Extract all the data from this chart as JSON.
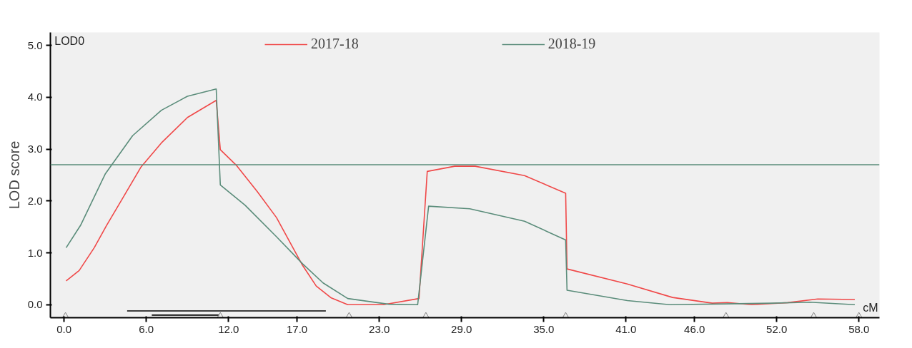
{
  "chart_data": {
    "type": "line",
    "ylabel": "LOD score",
    "annotations": [
      "LOD0",
      "cM"
    ],
    "xlim": [
      -1.0,
      59.5
    ],
    "ylim": [
      -0.25,
      5.25
    ],
    "xticks": [
      {
        "value": 0,
        "label": "0.0"
      },
      {
        "value": 6,
        "label": "6.0"
      },
      {
        "value": 12,
        "label": "12.0"
      },
      {
        "value": 17,
        "label": "17.0"
      },
      {
        "value": 23,
        "label": "23.0"
      },
      {
        "value": 29,
        "label": "29.0"
      },
      {
        "value": 35,
        "label": "35.0"
      },
      {
        "value": 41,
        "label": "41.0"
      },
      {
        "value": 46,
        "label": "46.0"
      },
      {
        "value": 52,
        "label": "52.0"
      },
      {
        "value": 58,
        "label": "58.0"
      }
    ],
    "yticks": [
      {
        "value": 0,
        "label": "0.0"
      },
      {
        "value": 1,
        "label": "1.0"
      },
      {
        "value": 2,
        "label": "2.0"
      },
      {
        "value": 3,
        "label": "3.0"
      },
      {
        "value": 4,
        "label": "4.0"
      },
      {
        "value": 5,
        "label": "5.0"
      }
    ],
    "grid": false,
    "legend": "top",
    "line_style": "solid",
    "marker": "none",
    "ref_lines": [
      {
        "axis": "y",
        "value": 2.7,
        "label": null,
        "color": "#5a8c7a"
      }
    ],
    "series": [
      {
        "name": "2017-18",
        "color": "#f04848",
        "x": [
          0.15,
          1.1,
          2.2,
          3.1,
          4.2,
          5.6,
          7.1,
          9.0,
          11.1,
          11.4,
          12.6,
          14.1,
          15.5,
          17.4,
          18.4,
          19.5,
          20.7,
          23.3,
          25.9,
          26.5,
          28.5,
          30.0,
          33.6,
          36.6,
          36.7,
          41.1,
          44.4,
          47.3,
          48.4,
          50.2,
          52.8,
          55.0,
          57.7
        ],
        "values": [
          0.46,
          0.66,
          1.1,
          1.53,
          2.02,
          2.65,
          3.12,
          3.61,
          3.94,
          2.99,
          2.68,
          2.18,
          1.68,
          0.76,
          0.36,
          0.13,
          0.0,
          0.0,
          0.12,
          2.57,
          2.67,
          2.67,
          2.49,
          2.15,
          0.69,
          0.4,
          0.14,
          0.03,
          0.04,
          0.0,
          0.04,
          0.11,
          0.1
        ]
      },
      {
        "name": "2018-19",
        "color": "#5a8c7a",
        "x": [
          0.15,
          1.2,
          3.0,
          5.0,
          7.1,
          9.0,
          11.1,
          11.4,
          13.2,
          15.5,
          17.4,
          18.9,
          20.7,
          23.7,
          25.8,
          26.6,
          29.6,
          33.6,
          36.6,
          36.7,
          41.1,
          44.2,
          51.7,
          54.4,
          57.7
        ],
        "values": [
          1.1,
          1.53,
          2.52,
          3.26,
          3.75,
          4.02,
          4.16,
          2.31,
          1.92,
          1.31,
          0.79,
          0.42,
          0.12,
          0.01,
          0.0,
          1.9,
          1.85,
          1.61,
          1.25,
          0.28,
          0.08,
          0.0,
          0.03,
          0.05,
          0.0
        ]
      },
      {
        "color": "#000000",
        "x": [
          4.6,
          19.1
        ],
        "values": [
          -0.12,
          -0.12
        ]
      },
      {
        "color": "#000000",
        "x": [
          6.4,
          11.3
        ],
        "values": [
          -0.2,
          -0.2
        ]
      },
      {
        "type": "scatter",
        "marker": "triangle",
        "color": "#808080",
        "x": [
          0.1,
          11.4,
          20.8,
          26.4,
          36.6,
          48.3,
          54.7,
          58.0
        ],
        "values": [
          -0.22,
          -0.22,
          -0.22,
          -0.22,
          -0.22,
          -0.22,
          -0.22,
          -0.22
        ]
      }
    ]
  }
}
